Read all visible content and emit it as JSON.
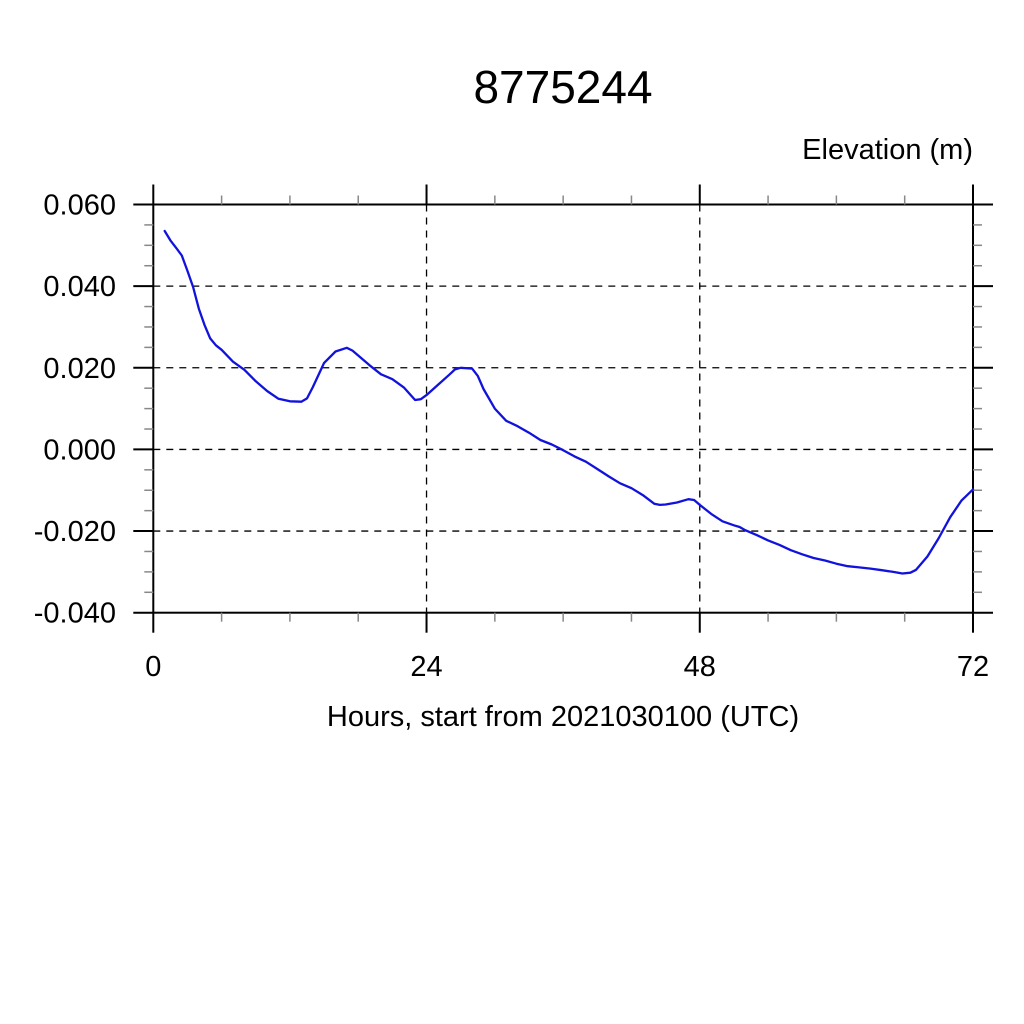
{
  "page": {
    "background": "#ffffff"
  },
  "chart_data": {
    "type": "line",
    "title": "8775244",
    "right_axis_title": "Elevation (m)",
    "xlabel": "Hours, start from 2021030100 (UTC)",
    "ylabel": "Elevation (m)",
    "xlim": [
      0,
      72
    ],
    "ylim": [
      -0.04,
      0.06
    ],
    "x_ticks": {
      "values": [
        0,
        24,
        48,
        72
      ],
      "labels": [
        "0",
        "24",
        "48",
        "72"
      ],
      "minor_step": 6
    },
    "y_ticks": {
      "values": [
        0.06,
        0.04,
        0.02,
        0.0,
        -0.02,
        -0.04
      ],
      "labels": [
        "0.060",
        "0.040",
        "0.020",
        "0.000",
        "-0.020",
        "-0.040"
      ],
      "minor_step": 0.005
    },
    "grid": "dashed lines at major ticks, black",
    "legend": "none",
    "line_color": "#1212dd",
    "axis_color": "#000000",
    "minor_tick_color": "#888888",
    "series": [
      {
        "name": "elevation",
        "points": [
          [
            1.0,
            0.0535
          ],
          [
            1.5,
            0.0512
          ],
          [
            2.0,
            0.0494
          ],
          [
            2.5,
            0.0475
          ],
          [
            3.0,
            0.0437
          ],
          [
            3.5,
            0.0398
          ],
          [
            4.0,
            0.0345
          ],
          [
            4.5,
            0.0305
          ],
          [
            5.0,
            0.0272
          ],
          [
            5.5,
            0.0255
          ],
          [
            6.0,
            0.0244
          ],
          [
            7.0,
            0.0215
          ],
          [
            8.0,
            0.0195
          ],
          [
            9.0,
            0.0167
          ],
          [
            10.0,
            0.0143
          ],
          [
            11.0,
            0.0124
          ],
          [
            12.0,
            0.0118
          ],
          [
            13.0,
            0.0117
          ],
          [
            13.5,
            0.0125
          ],
          [
            14.0,
            0.0152
          ],
          [
            15.0,
            0.0212
          ],
          [
            16.0,
            0.024
          ],
          [
            17.0,
            0.0249
          ],
          [
            17.5,
            0.0242
          ],
          [
            18.0,
            0.023
          ],
          [
            19.0,
            0.0206
          ],
          [
            20.0,
            0.0184
          ],
          [
            21.0,
            0.0172
          ],
          [
            22.0,
            0.0152
          ],
          [
            23.0,
            0.0121
          ],
          [
            23.5,
            0.0123
          ],
          [
            24.0,
            0.0133
          ],
          [
            25.0,
            0.0158
          ],
          [
            26.0,
            0.0183
          ],
          [
            26.5,
            0.0196
          ],
          [
            27.0,
            0.02
          ],
          [
            28.0,
            0.0198
          ],
          [
            28.5,
            0.018
          ],
          [
            29.0,
            0.0148
          ],
          [
            30.0,
            0.01
          ],
          [
            31.0,
            0.007
          ],
          [
            32.0,
            0.0057
          ],
          [
            33.0,
            0.0041
          ],
          [
            34.0,
            0.0023
          ],
          [
            35.0,
            0.0012
          ],
          [
            36.0,
            -0.0002
          ],
          [
            37.0,
            -0.0017
          ],
          [
            38.0,
            -0.003
          ],
          [
            39.0,
            -0.0048
          ],
          [
            40.0,
            -0.0066
          ],
          [
            41.0,
            -0.0083
          ],
          [
            42.0,
            -0.0095
          ],
          [
            43.0,
            -0.0112
          ],
          [
            44.0,
            -0.0133
          ],
          [
            44.5,
            -0.0136
          ],
          [
            45.0,
            -0.0135
          ],
          [
            46.0,
            -0.013
          ],
          [
            47.0,
            -0.0122
          ],
          [
            47.5,
            -0.0124
          ],
          [
            48.0,
            -0.0136
          ],
          [
            49.0,
            -0.0158
          ],
          [
            50.0,
            -0.0176
          ],
          [
            51.0,
            -0.0186
          ],
          [
            51.5,
            -0.019
          ],
          [
            52.0,
            -0.0198
          ],
          [
            53.0,
            -0.021
          ],
          [
            54.0,
            -0.0223
          ],
          [
            55.0,
            -0.0234
          ],
          [
            56.0,
            -0.0247
          ],
          [
            57.0,
            -0.0257
          ],
          [
            58.0,
            -0.0266
          ],
          [
            59.0,
            -0.0272
          ],
          [
            60.0,
            -0.028
          ],
          [
            61.0,
            -0.0286
          ],
          [
            62.0,
            -0.0289
          ],
          [
            63.0,
            -0.0292
          ],
          [
            64.0,
            -0.0296
          ],
          [
            65.0,
            -0.03
          ],
          [
            65.8,
            -0.0304
          ],
          [
            66.5,
            -0.0302
          ],
          [
            67.0,
            -0.0295
          ],
          [
            68.0,
            -0.0262
          ],
          [
            69.0,
            -0.0217
          ],
          [
            70.0,
            -0.0166
          ],
          [
            71.0,
            -0.0125
          ],
          [
            72.0,
            -0.0098
          ]
        ]
      }
    ]
  }
}
